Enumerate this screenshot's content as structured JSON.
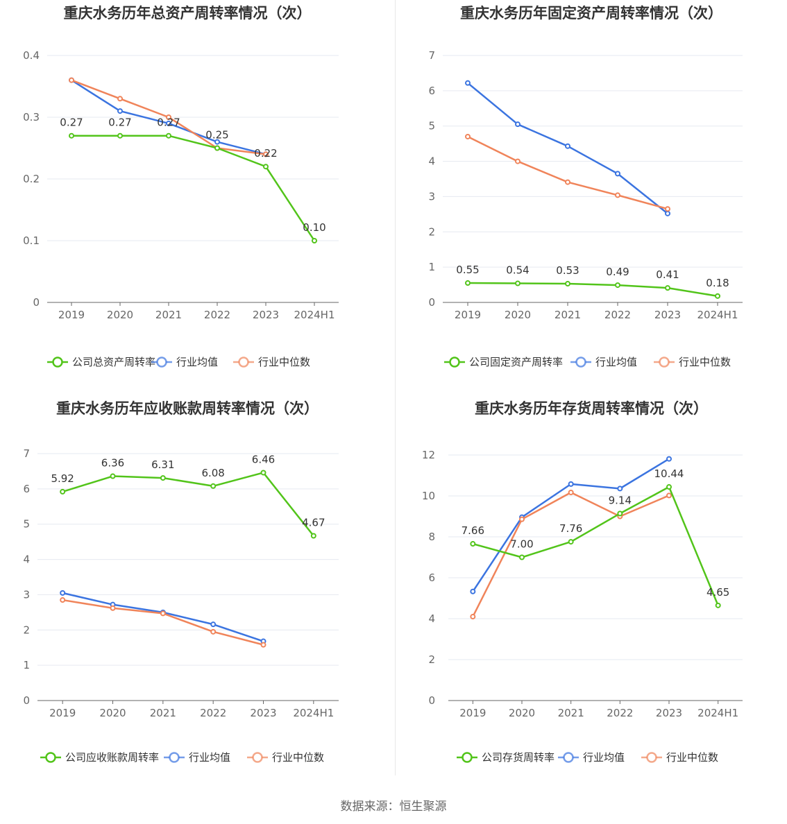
{
  "source": "数据来源：恒生聚源",
  "colors": {
    "company": "#52c41a",
    "avg": "#3b74e0",
    "median": "#f0845a",
    "grid": "#e6e9f0",
    "axis": "#666666"
  },
  "chart_data": [
    {
      "type": "line",
      "title": "重庆水务历年总资产周转率情况（次）",
      "categories": [
        "2019",
        "2020",
        "2021",
        "2022",
        "2023",
        "2024H1"
      ],
      "yticks": [
        "0",
        "0.1",
        "0.2",
        "0.3",
        "0.4"
      ],
      "ylim": [
        0,
        0.4
      ],
      "series": [
        {
          "name": "公司总资产周转率",
          "key": "company",
          "values": [
            0.27,
            0.27,
            0.27,
            0.25,
            0.22,
            0.1
          ],
          "labels": [
            "0.27",
            "0.27",
            "0.27",
            "0.25",
            "0.22",
            "0.10"
          ]
        },
        {
          "name": "行业均值",
          "key": "avg",
          "values": [
            0.36,
            0.31,
            0.29,
            0.26,
            0.24,
            null
          ]
        },
        {
          "name": "行业中位数",
          "key": "median",
          "values": [
            0.36,
            0.33,
            0.3,
            0.25,
            0.24,
            null
          ]
        }
      ]
    },
    {
      "type": "line",
      "title": "重庆水务历年固定资产周转率情况（次）",
      "categories": [
        "2019",
        "2020",
        "2021",
        "2022",
        "2023",
        "2024H1"
      ],
      "yticks": [
        "0",
        "1",
        "2",
        "3",
        "4",
        "5",
        "6",
        "7"
      ],
      "ylim": [
        0,
        7
      ],
      "series": [
        {
          "name": "公司固定资产周转率",
          "key": "company",
          "values": [
            0.55,
            0.54,
            0.53,
            0.49,
            0.41,
            0.18
          ],
          "labels": [
            "0.55",
            "0.54",
            "0.53",
            "0.49",
            "0.41",
            "0.18"
          ]
        },
        {
          "name": "行业均值",
          "key": "avg",
          "values": [
            6.22,
            5.05,
            4.43,
            3.65,
            2.52,
            null
          ]
        },
        {
          "name": "行业中位数",
          "key": "median",
          "values": [
            4.7,
            4.0,
            3.41,
            3.04,
            2.65,
            null
          ]
        }
      ]
    },
    {
      "type": "line",
      "title": "重庆水务历年应收账款周转率情况（次）",
      "categories": [
        "2019",
        "2020",
        "2021",
        "2022",
        "2023",
        "2024H1"
      ],
      "yticks": [
        "0",
        "1",
        "2",
        "3",
        "4",
        "5",
        "6",
        "7"
      ],
      "ylim": [
        0,
        7
      ],
      "series": [
        {
          "name": "公司应收账款周转率",
          "key": "company",
          "values": [
            5.92,
            6.36,
            6.31,
            6.08,
            6.46,
            4.67
          ],
          "labels": [
            "5.92",
            "6.36",
            "6.31",
            "6.08",
            "6.46",
            "4.67"
          ]
        },
        {
          "name": "行业均值",
          "key": "avg",
          "values": [
            3.05,
            2.72,
            2.5,
            2.16,
            1.68,
            null
          ]
        },
        {
          "name": "行业中位数",
          "key": "median",
          "values": [
            2.85,
            2.62,
            2.47,
            1.95,
            1.58,
            null
          ]
        }
      ]
    },
    {
      "type": "line",
      "title": "重庆水务历年存货周转率情况（次）",
      "categories": [
        "2019",
        "2020",
        "2021",
        "2022",
        "2023",
        "2024H1"
      ],
      "yticks": [
        "0",
        "2",
        "4",
        "6",
        "8",
        "10",
        "12"
      ],
      "ylim": [
        0,
        12
      ],
      "series": [
        {
          "name": "公司存货周转率",
          "key": "company",
          "values": [
            7.66,
            7.0,
            7.76,
            9.14,
            10.44,
            4.65
          ],
          "labels": [
            "7.66",
            "7.00",
            "7.76",
            "9.14",
            "10.44",
            "4.65"
          ]
        },
        {
          "name": "行业均值",
          "key": "avg",
          "values": [
            5.33,
            8.96,
            10.58,
            10.36,
            11.81,
            null
          ]
        },
        {
          "name": "行业中位数",
          "key": "median",
          "values": [
            4.1,
            8.86,
            10.17,
            9.0,
            10.02,
            null
          ]
        }
      ]
    }
  ]
}
